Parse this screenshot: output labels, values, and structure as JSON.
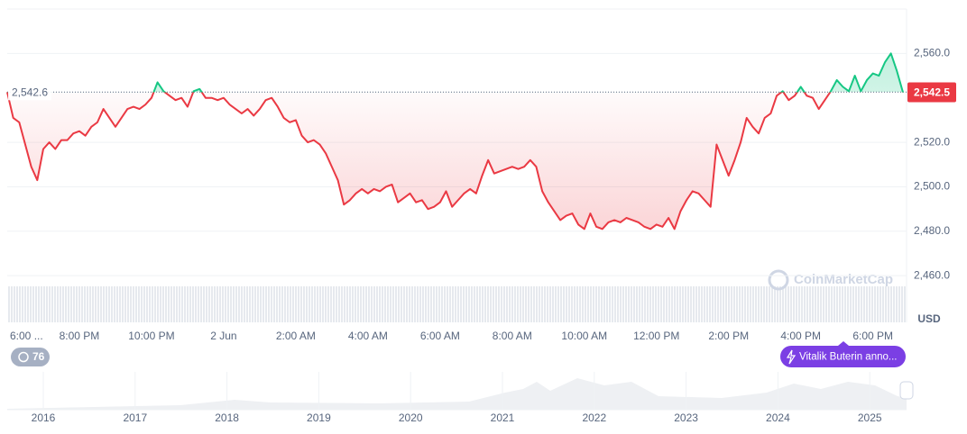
{
  "chart_data": {
    "type": "line",
    "currency": "USD",
    "categories": [
      "6:00 ...",
      null,
      null,
      null,
      null,
      null,
      null,
      null,
      null,
      null,
      null,
      null,
      "8:00 PM",
      null,
      null,
      null,
      null,
      null,
      null,
      null,
      null,
      null,
      null,
      null,
      "10:00 PM",
      null,
      null,
      null,
      null,
      null,
      null,
      null,
      null,
      null,
      null,
      null,
      "2 Jun",
      null,
      null,
      null,
      null,
      null,
      null,
      null,
      null,
      null,
      null,
      null,
      "2:00 AM",
      null,
      null,
      null,
      null,
      null,
      null,
      null,
      null,
      null,
      null,
      null,
      "4:00 AM",
      null,
      null,
      null,
      null,
      null,
      null,
      null,
      null,
      null,
      null,
      null,
      "6:00 AM",
      null,
      null,
      null,
      null,
      null,
      null,
      null,
      null,
      null,
      null,
      null,
      "8:00 AM",
      null,
      null,
      null,
      null,
      null,
      null,
      null,
      null,
      null,
      null,
      null,
      "10:00 AM",
      null,
      null,
      null,
      null,
      null,
      null,
      null,
      null,
      null,
      null,
      null,
      "12:00 PM",
      null,
      null,
      null,
      null,
      null,
      null,
      null,
      null,
      null,
      null,
      null,
      "2:00 PM",
      null,
      null,
      null,
      null,
      null,
      null,
      null,
      null,
      null,
      null,
      null,
      "4:00 PM",
      null,
      null,
      null,
      null,
      null,
      null,
      null,
      null,
      null,
      null,
      null,
      "6:00 PM",
      null,
      null,
      null,
      null,
      null
    ],
    "values": [
      2542.6,
      2531,
      2529,
      2519,
      2509,
      2503,
      2517,
      2520,
      2517,
      2521,
      2521,
      2524,
      2525,
      2523,
      2527,
      2529,
      2535,
      2531,
      2527,
      2531,
      2535,
      2536,
      2535,
      2537,
      2540,
      2547,
      2543,
      2541,
      2539,
      2540,
      2536,
      2543,
      2544,
      2540,
      2540,
      2539,
      2540,
      2537,
      2535,
      2533,
      2535,
      2532,
      2535,
      2539,
      2540,
      2536,
      2531,
      2529,
      2530,
      2523,
      2520,
      2521,
      2519,
      2515,
      2509,
      2503,
      2492,
      2494,
      2497,
      2499,
      2497,
      2499,
      2498,
      2500,
      2501,
      2493,
      2495,
      2497,
      2493,
      2494,
      2490,
      2491,
      2493,
      2498,
      2491,
      2494,
      2497,
      2499,
      2497,
      2505,
      2512,
      2506,
      2507,
      2508,
      2509,
      2508,
      2509,
      2512,
      2509,
      2498,
      2493,
      2489,
      2485,
      2487,
      2488,
      2483,
      2481,
      2488,
      2482,
      2481,
      2484,
      2485,
      2484,
      2486,
      2485,
      2484,
      2482,
      2481,
      2483,
      2482,
      2486,
      2481,
      2489,
      2494,
      2498,
      2497,
      2494,
      2491,
      2519,
      2512,
      2505,
      2512,
      2520,
      2531,
      2527,
      2524,
      2531,
      2533,
      2541,
      2543,
      2539,
      2541,
      2545,
      2541,
      2540,
      2535,
      2539,
      2543,
      2548,
      2545,
      2543,
      2550,
      2543,
      2548,
      2551,
      2550,
      2556,
      2560,
      2552,
      2542.5
    ],
    "ylim": [
      2439,
      2580
    ],
    "yticks": [
      {
        "value": 2460,
        "label": "2,460.0"
      },
      {
        "value": 2480,
        "label": "2,480.0"
      },
      {
        "value": 2500,
        "label": "2,500.0"
      },
      {
        "value": 2520,
        "label": "2,520.0"
      },
      {
        "value": 2560,
        "label": "2,560.0"
      }
    ],
    "grid": true,
    "up_color": "#16c784",
    "down_color": "#ea3943",
    "baseline": {
      "value": 2542.6,
      "label": "2,542.6"
    },
    "last_price": {
      "value": 2542.5,
      "label": "2,542.5"
    },
    "watermark": "CoinMarketCap"
  },
  "badges": {
    "history_count": "76",
    "event": "Vitalik Buterin anno..."
  },
  "overview": {
    "years": [
      "2016",
      "2017",
      "2018",
      "2019",
      "2020",
      "2021",
      "2022",
      "2023",
      "2024",
      "2025"
    ]
  }
}
